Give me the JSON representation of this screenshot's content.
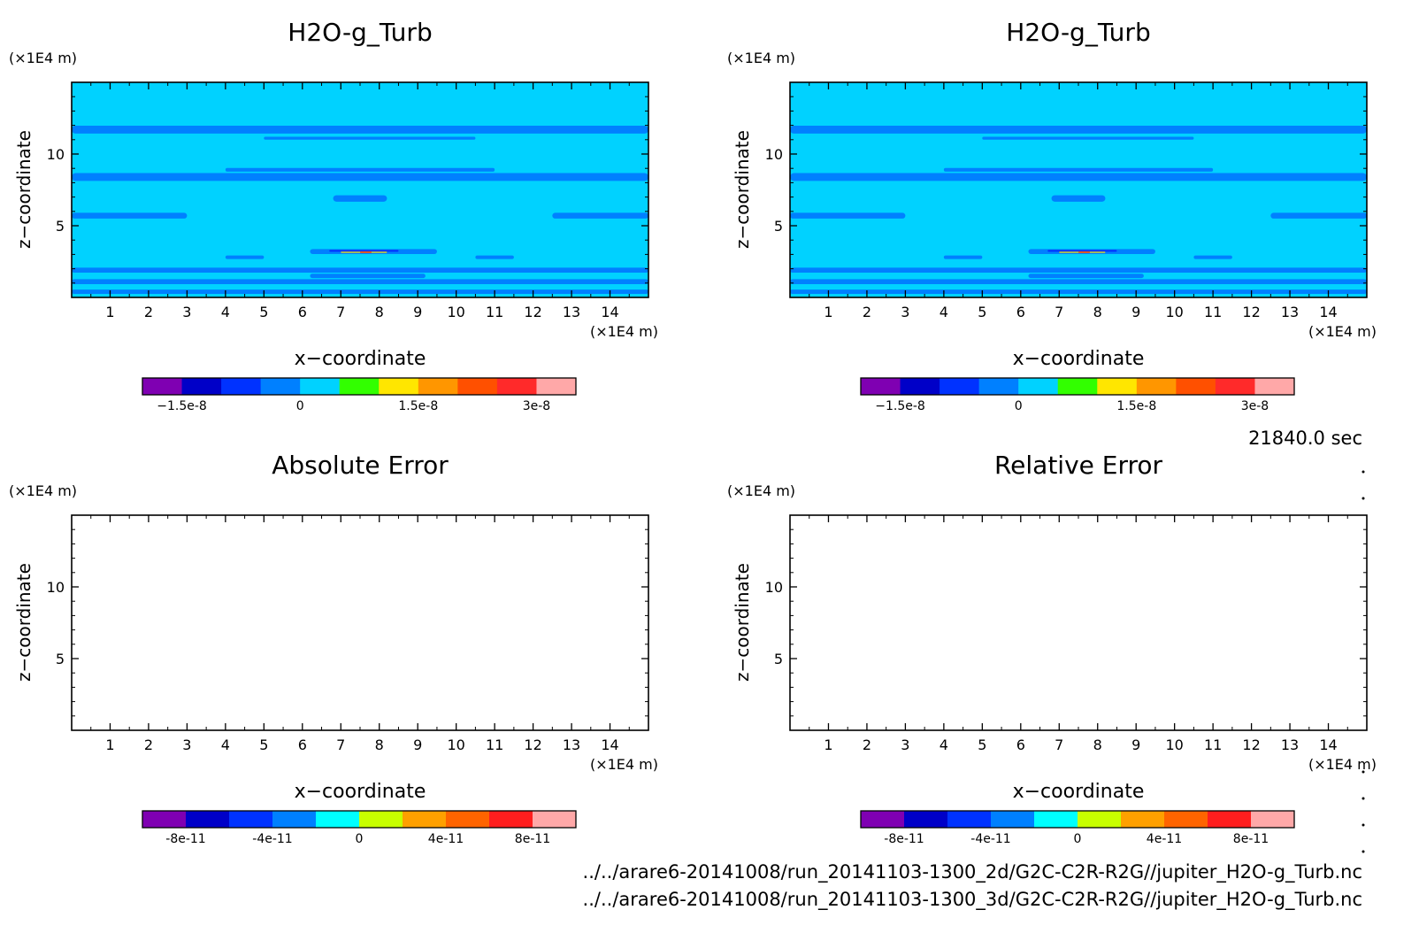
{
  "common": {
    "x_unit": "(×1E4 m)",
    "z_unit": "(×1E4 m)",
    "xlabel": "x−coordinate",
    "ylabel": "z−coordinate",
    "x_ticks": [
      "1",
      "2",
      "3",
      "4",
      "5",
      "6",
      "7",
      "8",
      "9",
      "10",
      "11",
      "12",
      "13",
      "14"
    ],
    "z_ticks": [
      "5",
      "10"
    ]
  },
  "time_label": "21840.0 sec",
  "files": [
    "../../arare6-20141008/run_20141103-1300_2d/G2C-C2R-R2G//jupiter_H2O-g_Turb.nc",
    "../../arare6-20141008/run_20141103-1300_3d/G2C-C2R-R2G//jupiter_H2O-g_Turb.nc"
  ],
  "chart_data": [
    {
      "type": "heatmap",
      "title": "H2O-g_Turb",
      "xlim": [
        0,
        15
      ],
      "ylim": [
        0,
        15
      ],
      "grid": false,
      "colorbar": {
        "colors": [
          "#7f00b2",
          "#0000c8",
          "#0032ff",
          "#0080ff",
          "#00d2ff",
          "#32ff00",
          "#ffe600",
          "#ff9600",
          "#ff5000",
          "#ff2a2a",
          "#ffa8a8"
        ],
        "tick_labels": [
          "−1.5e-8",
          "0",
          "1.5e-8",
          "3e-8"
        ],
        "tick_values": [
          -1.5e-08,
          0,
          1.5e-08,
          3e-08
        ],
        "range": [
          -2e-08,
          3.5e-08
        ]
      },
      "field": {
        "background": "#00d2ff",
        "bands": [
          {
            "z": 11.7,
            "x_start": 0,
            "x_end": 15,
            "th": 0.55,
            "color": "#0080ff"
          },
          {
            "z": 11.1,
            "x_start": 5,
            "x_end": 10.5,
            "th": 0.2,
            "color": "#0080ff"
          },
          {
            "z": 8.4,
            "x_start": 0,
            "x_end": 15,
            "th": 0.55,
            "color": "#0080ff"
          },
          {
            "z": 8.9,
            "x_start": 4,
            "x_end": 11,
            "th": 0.25,
            "color": "#0080ff"
          },
          {
            "z": 6.9,
            "x_start": 6.8,
            "x_end": 8.2,
            "th": 0.45,
            "color": "#0080ff"
          },
          {
            "z": 5.7,
            "x_start": 0,
            "x_end": 3,
            "th": 0.4,
            "color": "#0080ff"
          },
          {
            "z": 5.7,
            "x_start": 12.5,
            "x_end": 15,
            "th": 0.4,
            "color": "#0080ff"
          },
          {
            "z": 3.2,
            "x_start": 6.2,
            "x_end": 9.5,
            "th": 0.35,
            "color": "#0080ff"
          },
          {
            "z": 2.8,
            "x_start": 4,
            "x_end": 5,
            "th": 0.25,
            "color": "#0080ff"
          },
          {
            "z": 2.8,
            "x_start": 10.5,
            "x_end": 11.5,
            "th": 0.25,
            "color": "#0080ff"
          },
          {
            "z": 1.9,
            "x_start": 0,
            "x_end": 15,
            "th": 0.35,
            "color": "#0080ff"
          },
          {
            "z": 1.1,
            "x_start": 0,
            "x_end": 15,
            "th": 0.35,
            "color": "#0080ff"
          },
          {
            "z": 0.4,
            "x_start": 0,
            "x_end": 15,
            "th": 0.3,
            "color": "#0080ff"
          },
          {
            "z": 1.5,
            "x_start": 6.2,
            "x_end": 9.2,
            "th": 0.3,
            "color": "#0080ff"
          },
          {
            "z": 3.25,
            "x_start": 6.7,
            "x_end": 8.5,
            "th": 0.12,
            "color": "#0032ff"
          },
          {
            "z": 3.15,
            "x_start": 7.0,
            "x_end": 8.2,
            "th": 0.08,
            "color": "#ffe600"
          },
          {
            "z": 3.15,
            "x_start": 7.5,
            "x_end": 7.8,
            "th": 0.1,
            "color": "#ff5000"
          }
        ]
      }
    },
    {
      "type": "heatmap",
      "title": "H2O-g_Turb",
      "xlim": [
        0,
        15
      ],
      "ylim": [
        0,
        15
      ],
      "grid": false,
      "colorbar": {
        "colors": [
          "#7f00b2",
          "#0000c8",
          "#0032ff",
          "#0080ff",
          "#00d2ff",
          "#32ff00",
          "#ffe600",
          "#ff9600",
          "#ff5000",
          "#ff2a2a",
          "#ffa8a8"
        ],
        "tick_labels": [
          "−1.5e-8",
          "0",
          "1.5e-8",
          "3e-8"
        ],
        "tick_values": [
          -1.5e-08,
          0,
          1.5e-08,
          3e-08
        ],
        "range": [
          -2e-08,
          3.5e-08
        ]
      },
      "field": {
        "background": "#00d2ff",
        "bands": [
          {
            "z": 11.7,
            "x_start": 0,
            "x_end": 15,
            "th": 0.55,
            "color": "#0080ff"
          },
          {
            "z": 11.1,
            "x_start": 5,
            "x_end": 10.5,
            "th": 0.2,
            "color": "#0080ff"
          },
          {
            "z": 8.4,
            "x_start": 0,
            "x_end": 15,
            "th": 0.55,
            "color": "#0080ff"
          },
          {
            "z": 8.9,
            "x_start": 4,
            "x_end": 11,
            "th": 0.25,
            "color": "#0080ff"
          },
          {
            "z": 6.9,
            "x_start": 6.8,
            "x_end": 8.2,
            "th": 0.45,
            "color": "#0080ff"
          },
          {
            "z": 5.7,
            "x_start": 0,
            "x_end": 3,
            "th": 0.4,
            "color": "#0080ff"
          },
          {
            "z": 5.7,
            "x_start": 12.5,
            "x_end": 15,
            "th": 0.4,
            "color": "#0080ff"
          },
          {
            "z": 3.2,
            "x_start": 6.2,
            "x_end": 9.5,
            "th": 0.35,
            "color": "#0080ff"
          },
          {
            "z": 2.8,
            "x_start": 4,
            "x_end": 5,
            "th": 0.25,
            "color": "#0080ff"
          },
          {
            "z": 2.8,
            "x_start": 10.5,
            "x_end": 11.5,
            "th": 0.25,
            "color": "#0080ff"
          },
          {
            "z": 1.9,
            "x_start": 0,
            "x_end": 15,
            "th": 0.35,
            "color": "#0080ff"
          },
          {
            "z": 1.1,
            "x_start": 0,
            "x_end": 15,
            "th": 0.35,
            "color": "#0080ff"
          },
          {
            "z": 0.4,
            "x_start": 0,
            "x_end": 15,
            "th": 0.3,
            "color": "#0080ff"
          },
          {
            "z": 1.5,
            "x_start": 6.2,
            "x_end": 9.2,
            "th": 0.3,
            "color": "#0080ff"
          },
          {
            "z": 3.25,
            "x_start": 6.7,
            "x_end": 8.5,
            "th": 0.12,
            "color": "#0032ff"
          },
          {
            "z": 3.15,
            "x_start": 7.0,
            "x_end": 8.2,
            "th": 0.08,
            "color": "#ffe600"
          },
          {
            "z": 3.15,
            "x_start": 7.5,
            "x_end": 7.8,
            "th": 0.1,
            "color": "#ff5000"
          }
        ]
      }
    },
    {
      "type": "heatmap",
      "title": "Absolute Error",
      "xlim": [
        0,
        15
      ],
      "ylim": [
        0,
        15
      ],
      "grid": false,
      "colorbar": {
        "colors": [
          "#7f00b2",
          "#0000c8",
          "#0032ff",
          "#0080ff",
          "#00ffff",
          "#c8ff00",
          "#ffa000",
          "#ff6400",
          "#ff1e1e",
          "#ffa8a8"
        ],
        "tick_labels": [
          "-8e-11",
          "-4e-11",
          "0",
          "4e-11",
          "8e-11"
        ],
        "tick_values": [
          -8e-11,
          -4e-11,
          0,
          4e-11,
          8e-11
        ],
        "range": [
          -1e-10,
          1e-10
        ]
      },
      "field": {
        "background": "#ffffff",
        "bands": []
      }
    },
    {
      "type": "heatmap",
      "title": "Relative Error",
      "xlim": [
        0,
        15
      ],
      "ylim": [
        0,
        15
      ],
      "grid": false,
      "colorbar": {
        "colors": [
          "#7f00b2",
          "#0000c8",
          "#0032ff",
          "#0080ff",
          "#00ffff",
          "#c8ff00",
          "#ffa000",
          "#ff6400",
          "#ff1e1e",
          "#ffa8a8"
        ],
        "tick_labels": [
          "-8e-11",
          "-4e-11",
          "0",
          "4e-11",
          "8e-11"
        ],
        "tick_values": [
          -8e-11,
          -4e-11,
          0,
          4e-11,
          8e-11
        ],
        "range": [
          -1e-10,
          1e-10
        ]
      },
      "field": {
        "background": "#ffffff",
        "bands": []
      }
    }
  ]
}
